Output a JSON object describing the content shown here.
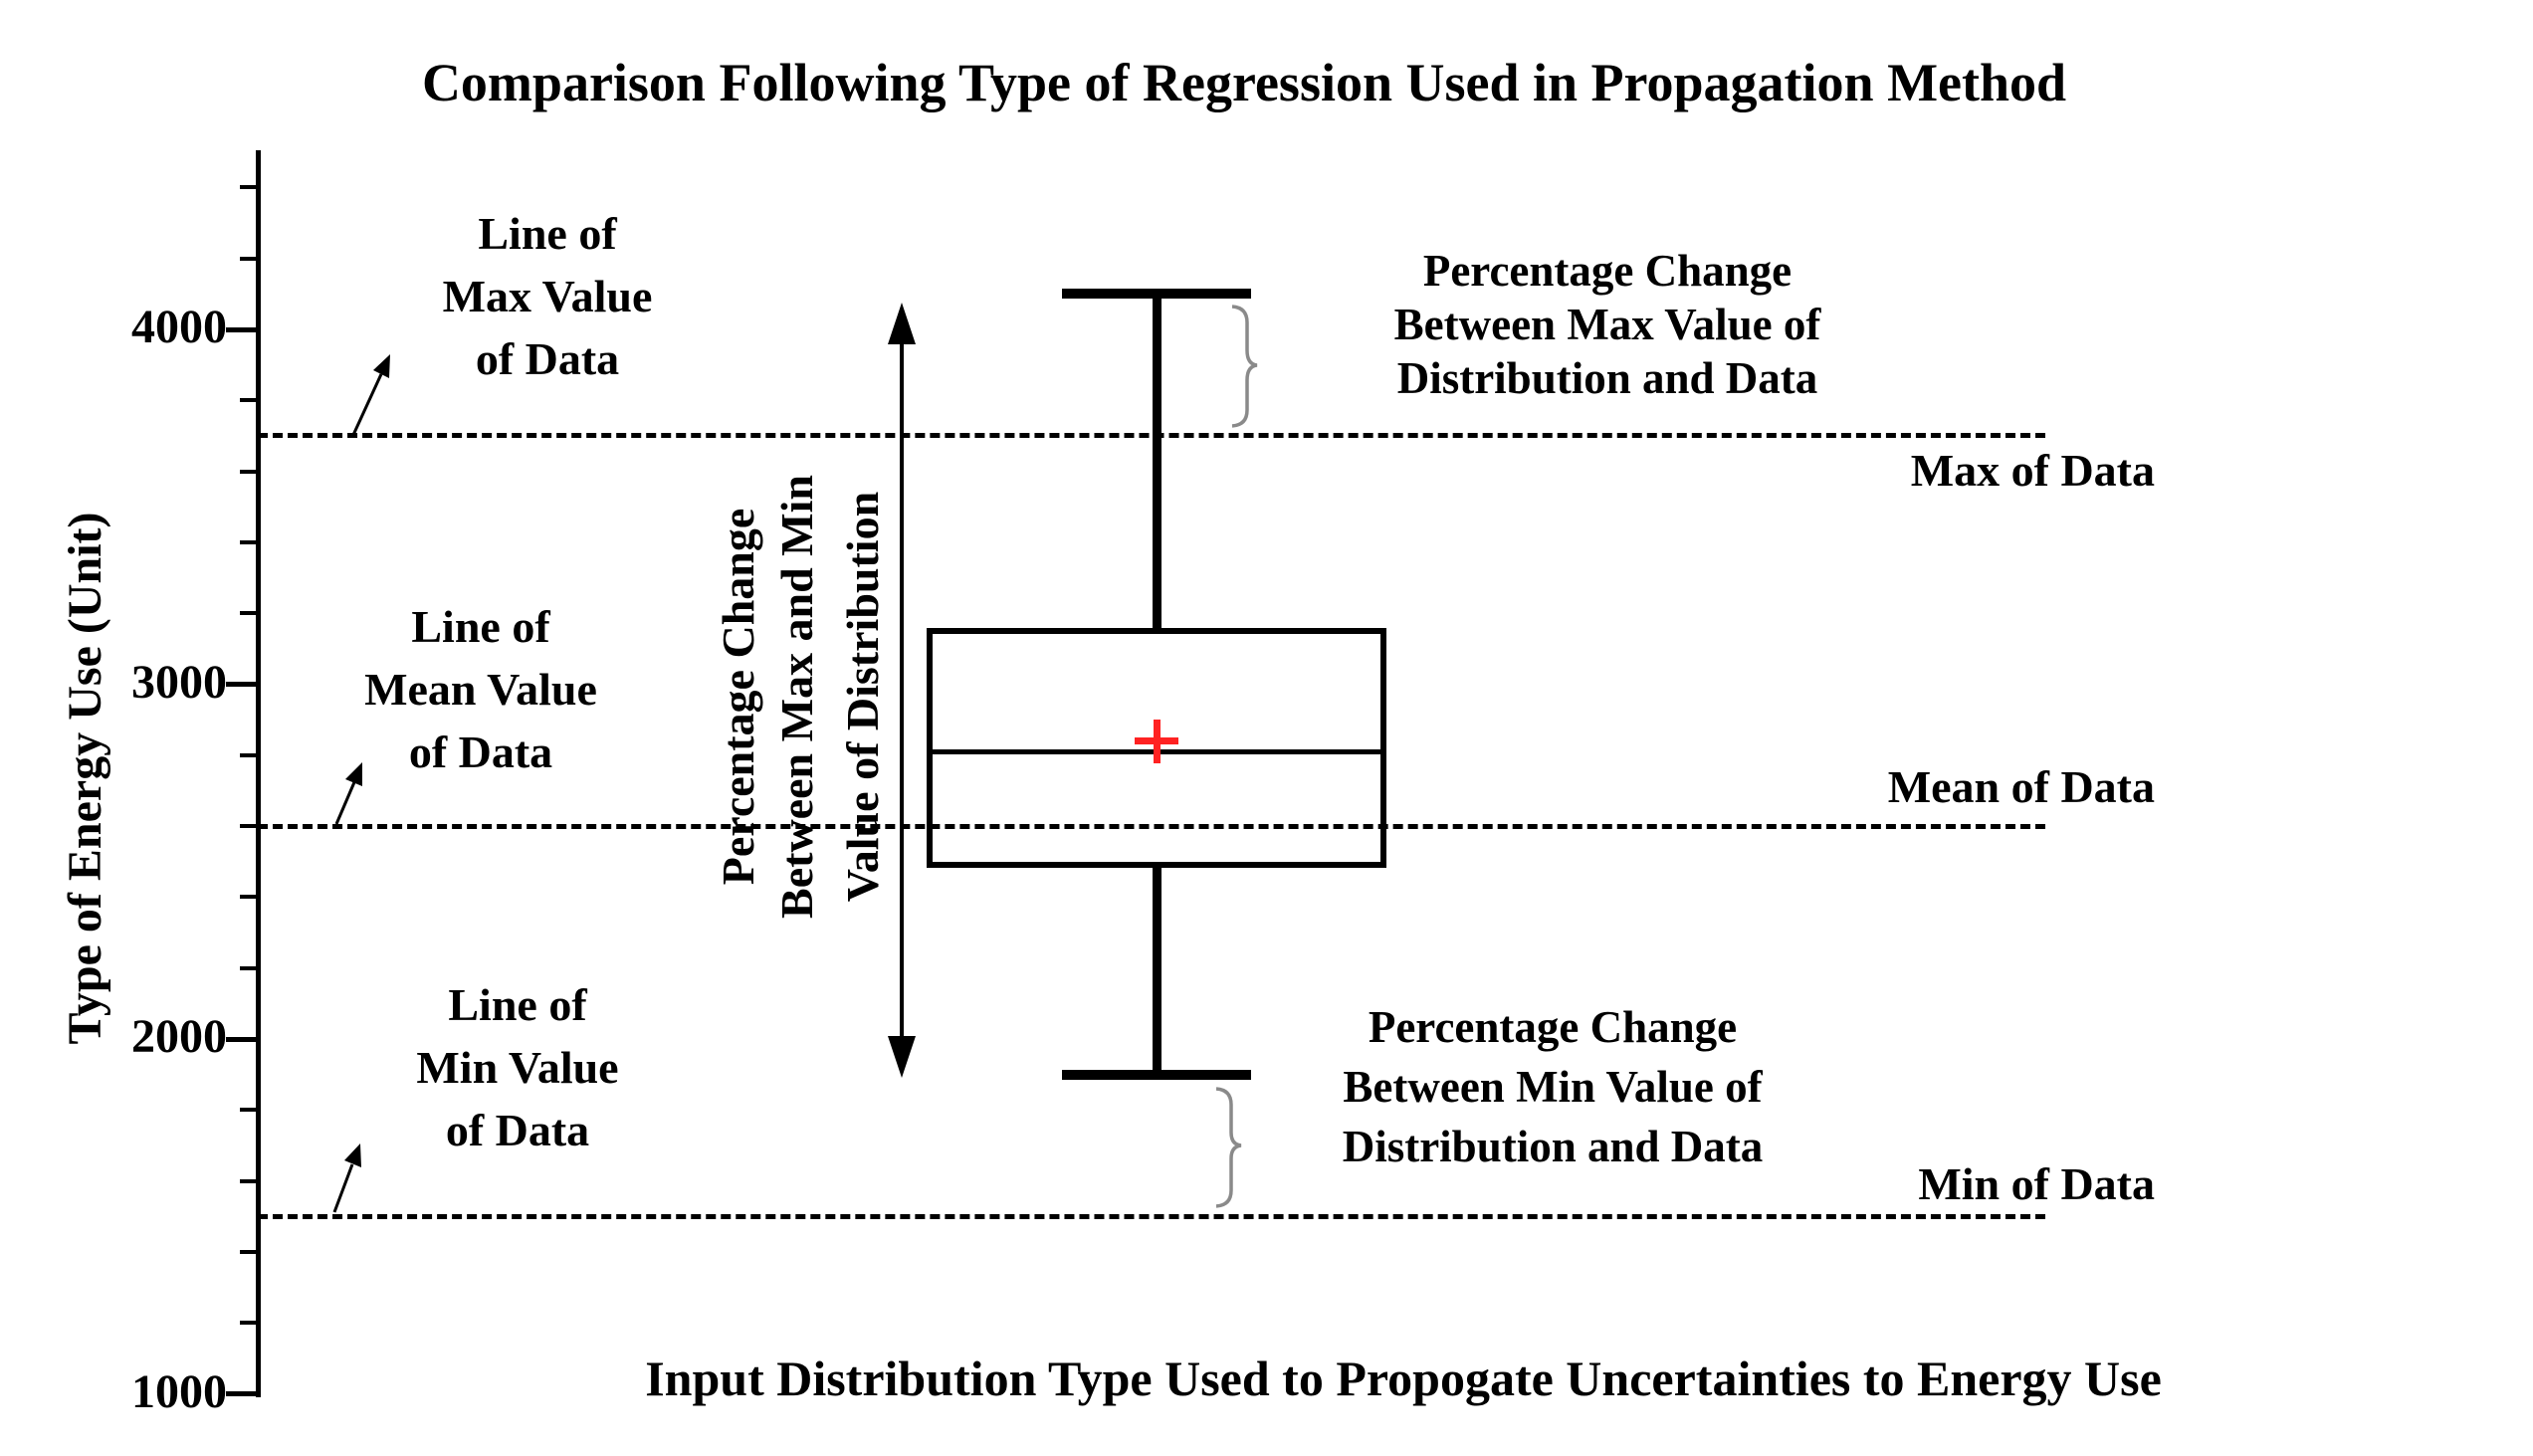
{
  "chart_data": {
    "type": "box",
    "title": "Comparison Following Type of Regression Used in Propagation Method",
    "xlabel": "Input Distribution Type Used to Propogate Uncertainties to Energy Use",
    "ylabel": "Type of Energy Use (Unit)",
    "ylim": [
      1000,
      4560
    ],
    "yticks_major": [
      4000,
      3000,
      2000,
      1000
    ],
    "ytick_minor_step": 200,
    "grid": false,
    "legend": "none",
    "box": {
      "whisker_high": 4100,
      "q3": 3150,
      "median": 2810,
      "mean": 2840,
      "q1": 2490,
      "whisker_low": 1900
    },
    "reference_lines": [
      {
        "id": "max",
        "value": 3700,
        "label": "Max of Data"
      },
      {
        "id": "mean",
        "value": 2600,
        "label": "Mean of Data"
      },
      {
        "id": "min",
        "value": 1500,
        "label": "Min of Data"
      }
    ],
    "colors": {
      "line": "#000000",
      "mean_marker": "#ff2222",
      "brace": "#8a8a8a"
    }
  },
  "annotations": {
    "line_of_max": "Line of\nMax Value\nof Data",
    "line_of_mean": "Line of\nMean Value\nof Data",
    "line_of_min": "Line of\nMin Value\nof Data",
    "pct_max": "Percentage Change\nBetween Max Value of\nDistribution and Data",
    "pct_min": "Percentage Change\nBetween Min Value of\nDistribution and Data",
    "pct_range": [
      "Percentage Change",
      "Between Max and Min",
      "Value of Distribution"
    ]
  }
}
